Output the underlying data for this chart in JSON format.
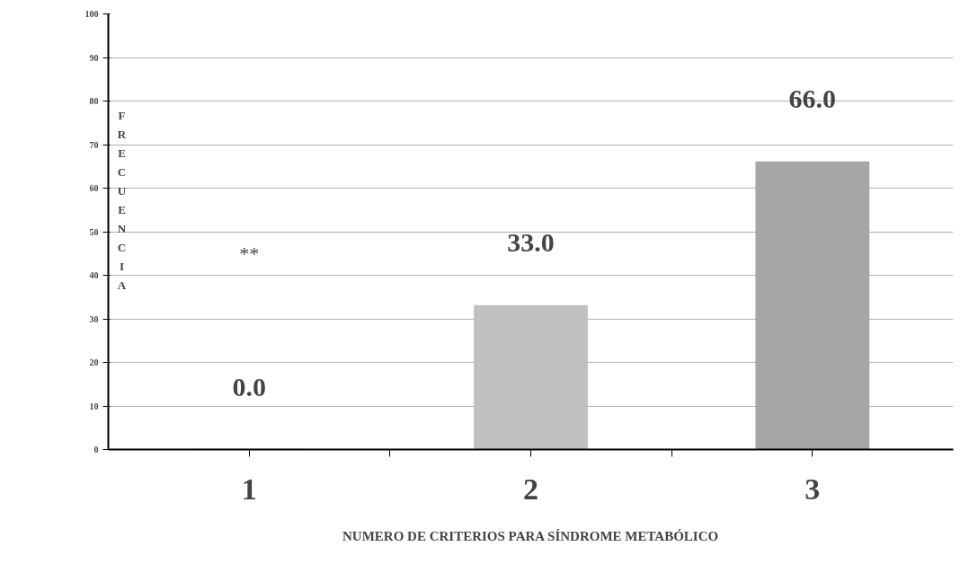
{
  "chart_data": {
    "type": "bar",
    "categories": [
      "1",
      "2",
      "3"
    ],
    "values": [
      0.0,
      33.0,
      66.0
    ],
    "colors": [
      "#c0c0c0",
      "#c0c0c0",
      "#a6a6a6"
    ],
    "value_labels": [
      "0.0",
      "33.0",
      "66.0"
    ],
    "ylim": [
      0,
      100
    ],
    "yticks": [
      0,
      10,
      20,
      30,
      40,
      50,
      60,
      70,
      80,
      90,
      100
    ],
    "grid": "y",
    "xlabel": "NUMERO DE CRITERIOS PARA SÍNDROME METABÓLICO",
    "ylabel": "FRECUENCIA",
    "annotations": [
      "**"
    ]
  }
}
